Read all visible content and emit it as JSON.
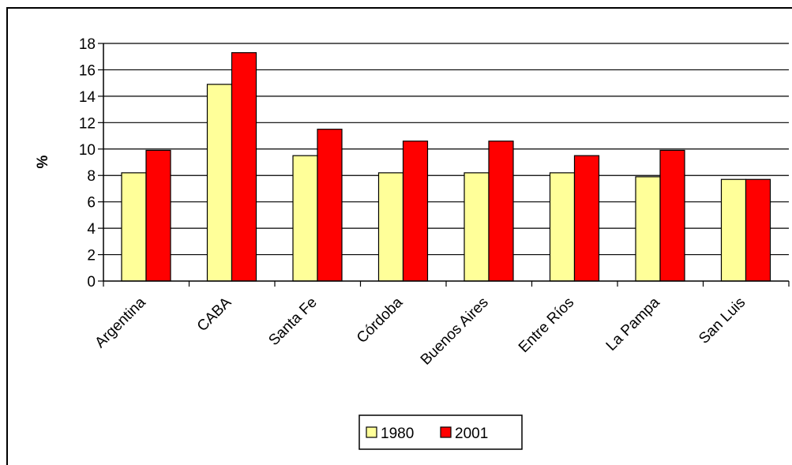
{
  "chart_data": {
    "type": "bar",
    "title": "",
    "xlabel": "",
    "ylabel": "%",
    "ylim": [
      0,
      18
    ],
    "yticks": [
      "0",
      "2",
      "4",
      "6",
      "8",
      "10",
      "12",
      "14",
      "16",
      "18"
    ],
    "grid": true,
    "legend_position": "bottom",
    "categories": [
      "Argentina",
      "CABA",
      "Santa Fe",
      "Córdoba",
      "Buenos Aires",
      "Entre Ríos",
      "La Pampa",
      "San Luis"
    ],
    "series": [
      {
        "name": "1980",
        "color": "#ffff99",
        "values": [
          8.2,
          14.9,
          9.5,
          8.2,
          8.2,
          8.2,
          7.9,
          7.7
        ]
      },
      {
        "name": "2001",
        "color": "#ff0000",
        "values": [
          9.9,
          17.3,
          11.5,
          10.6,
          10.6,
          9.5,
          9.9,
          7.7
        ]
      }
    ]
  }
}
